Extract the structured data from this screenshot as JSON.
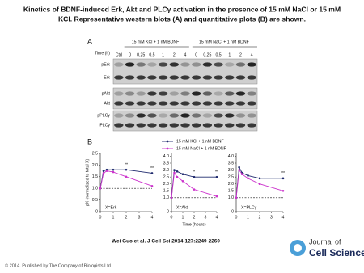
{
  "title": [
    "Kinetics of BDNF-induced Erk, Akt and PLCγ activation in the presence of 15 mM NaCl or 15 mM",
    "KCl. Representative western blots (A) and quantitative plots (B) are shown."
  ],
  "panel_a": {
    "label": "A",
    "header_kcl": "15 mM KCl + 1 nM BDNF",
    "header_nacl": "15 mM NaCl + 1 nM BDNF",
    "time_label": "Time (h)",
    "lanes": [
      "Ctrl",
      "0",
      "0.25",
      "0.5",
      "1",
      "2",
      "4",
      "0",
      "0.25",
      "0.5",
      "1",
      "2",
      "4"
    ],
    "rows": [
      "pErk",
      "Erk",
      "pAkt",
      "Akt",
      "pPLCγ",
      "PLCγ"
    ]
  },
  "panel_b": {
    "label": "B"
  },
  "chart_data": [
    {
      "type": "line",
      "title": "X=Erk",
      "ylabel": "pX (normalized to total X)",
      "x": [
        0,
        0.25,
        0.5,
        1,
        2,
        4
      ],
      "xlim": [
        0,
        4
      ],
      "xticks": [
        0,
        1,
        2,
        3,
        4
      ],
      "ylim": [
        0,
        2.5
      ],
      "yticks": [
        0,
        0.5,
        {
          "value": 1,
          "label": "1.0"
        },
        1.5,
        {
          "value": 2,
          "label": "2.0"
        },
        2.5
      ],
      "reference_line": 1,
      "series": [
        {
          "name": "15 mM KCl + 1 nM BDNF",
          "color": "#1f2a6e",
          "values": [
            1.0,
            1.75,
            1.8,
            1.8,
            1.8,
            1.65
          ]
        },
        {
          "name": "15 mM NaCl + 1 nM BDNF",
          "color": "#cc33cc",
          "values": [
            1.0,
            1.65,
            1.75,
            1.7,
            1.5,
            1.1
          ]
        }
      ],
      "annotations": [
        {
          "text": "**",
          "x": 2
        },
        {
          "text": "**",
          "x": 4
        }
      ]
    },
    {
      "type": "line",
      "title": "X=Akt",
      "xlabel": "Time (hours)",
      "x": [
        0,
        0.25,
        0.5,
        1,
        2,
        4
      ],
      "xlim": [
        0,
        4
      ],
      "xticks": [
        0,
        1,
        2,
        3,
        4
      ],
      "ylim": [
        0,
        4.2
      ],
      "yticks": [
        0,
        {
          "value": 1,
          "label": "1.0"
        },
        1.5,
        {
          "value": 2,
          "label": "2.0"
        },
        2.5,
        {
          "value": 3,
          "label": "3.0"
        },
        3.5,
        {
          "value": 4,
          "label": "4.0"
        }
      ],
      "reference_line": 1,
      "series": [
        {
          "color": "#1f2a6e",
          "values": [
            1.0,
            3.0,
            2.9,
            2.7,
            2.5,
            2.5
          ]
        },
        {
          "color": "#cc33cc",
          "values": [
            1.0,
            2.8,
            2.5,
            2.2,
            1.6,
            1.1
          ]
        }
      ],
      "annotations": [
        {
          "text": "*",
          "x": 2
        },
        {
          "text": "**",
          "x": 4
        }
      ]
    },
    {
      "type": "line",
      "title": "X=PLCγ",
      "x": [
        0,
        0.25,
        0.5,
        1,
        2,
        4
      ],
      "xlim": [
        0,
        4
      ],
      "xticks": [
        0,
        1,
        2,
        3,
        4
      ],
      "ylim": [
        0,
        4.2
      ],
      "yticks": [
        0,
        {
          "value": 1,
          "label": "1.0"
        },
        1.5,
        {
          "value": 2,
          "label": "2.0"
        },
        2.5,
        {
          "value": 3,
          "label": "3.0"
        },
        3.5,
        {
          "value": 4,
          "label": "4.0"
        }
      ],
      "reference_line": 1,
      "series": [
        {
          "color": "#1f2a6e",
          "values": [
            1.0,
            3.2,
            2.8,
            2.6,
            2.4,
            2.4
          ]
        },
        {
          "color": "#cc33cc",
          "values": [
            1.0,
            3.0,
            2.7,
            2.4,
            2.0,
            1.5
          ]
        }
      ],
      "annotations": [
        {
          "text": "**",
          "x": 4
        }
      ]
    }
  ],
  "citation": "Wei Guo et al. J Cell Sci 2014;127:2249-2260",
  "footer": "© 2014. Published by The Company of Biologists Ltd",
  "journal": {
    "line1": "Journal of",
    "line2": "Cell Science"
  }
}
